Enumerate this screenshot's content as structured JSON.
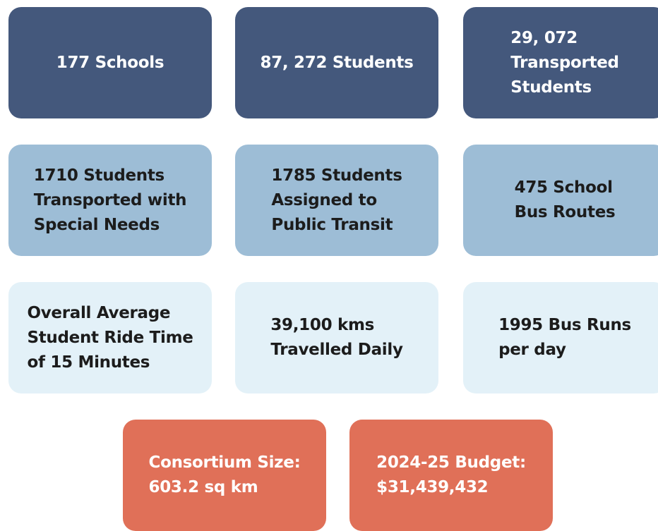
{
  "tiles": [
    {
      "lines": [
        "177 Schools"
      ]
    },
    {
      "lines": [
        "87, 272 Students"
      ]
    },
    {
      "lines": [
        "29, 072",
        "Transported",
        "Students"
      ]
    },
    {
      "lines": [
        "1710 Students",
        "Transported with",
        "Special Needs"
      ]
    },
    {
      "lines": [
        "1785 Students",
        "Assigned to",
        "Public Transit"
      ]
    },
    {
      "lines": [
        "475 School",
        "Bus Routes"
      ]
    },
    {
      "lines": [
        "Overall Average",
        "Student Ride Time",
        "of 15 Minutes"
      ]
    },
    {
      "lines": [
        "39,100 kms",
        "Travelled Daily"
      ]
    },
    {
      "lines": [
        "1995 Bus Runs",
        "per day"
      ]
    },
    {
      "lines": [
        "Consortium Size:",
        "603.2 sq km"
      ]
    },
    {
      "lines": [
        "2024-25 Budget:",
        "$31,439,432"
      ]
    }
  ]
}
